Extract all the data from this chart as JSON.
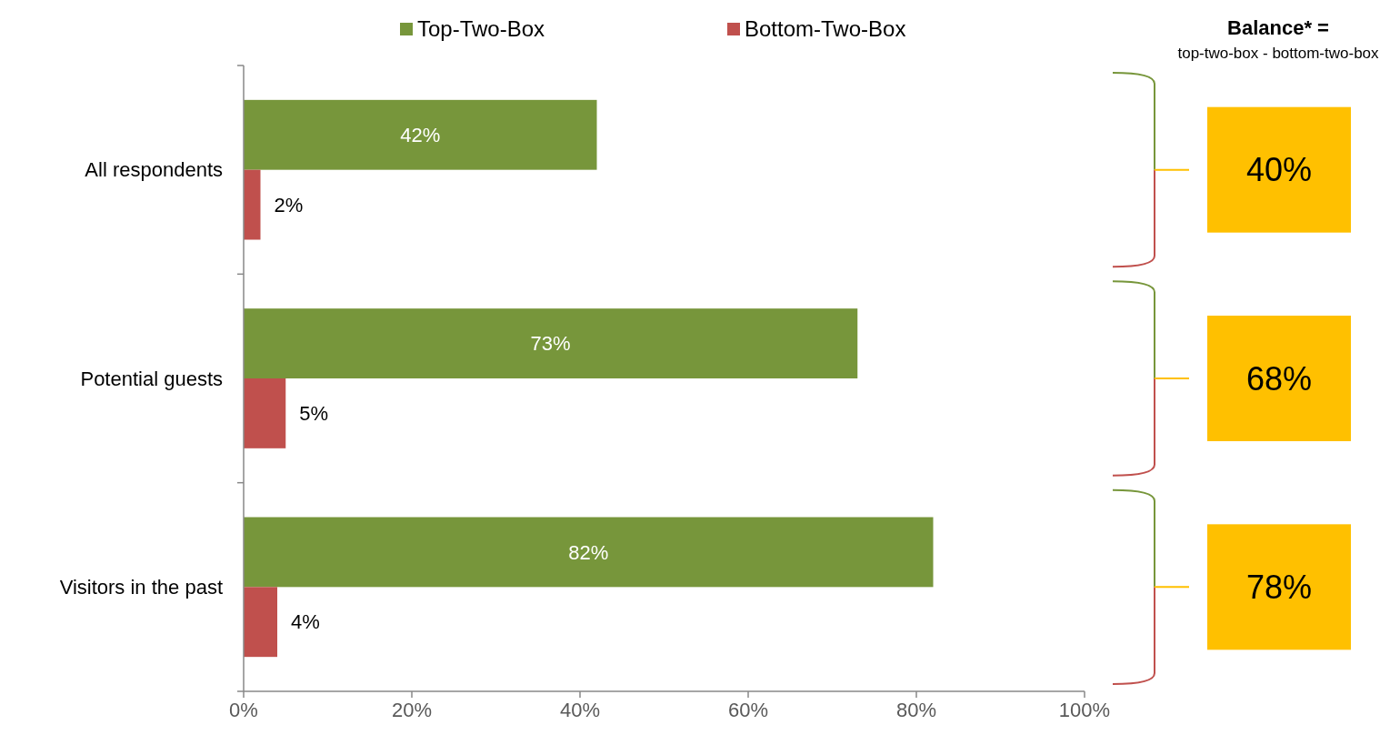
{
  "chart_data": {
    "type": "bar",
    "orientation": "horizontal",
    "categories": [
      "All respondents",
      "Potential guests",
      "Visitors in the past"
    ],
    "series": [
      {
        "name": "Top-Two-Box",
        "color": "#77963b",
        "values": [
          42,
          73,
          82
        ],
        "value_labels": [
          "42%",
          "73%",
          "82%"
        ]
      },
      {
        "name": "Bottom-Two-Box",
        "color": "#c0504d",
        "values": [
          2,
          5,
          4
        ],
        "value_labels": [
          "2%",
          "5%",
          "4%"
        ]
      }
    ],
    "xlim": [
      0,
      100
    ],
    "xticks": [
      {
        "value": 0,
        "label": "0%"
      },
      {
        "value": 20,
        "label": "20%"
      },
      {
        "value": 40,
        "label": "40%"
      },
      {
        "value": 60,
        "label": "60%"
      },
      {
        "value": 80,
        "label": "80%"
      },
      {
        "value": 100,
        "label": "100%"
      }
    ],
    "legend": "top",
    "grid": false,
    "annotations": [
      "Balance* =",
      "top-two-box - bottom-two-box",
      "40%",
      "68%",
      "78%"
    ]
  }
}
